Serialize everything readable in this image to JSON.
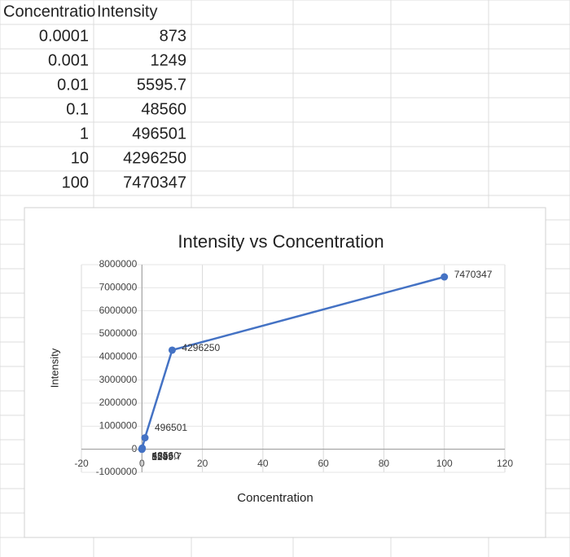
{
  "sheet": {
    "headers": [
      "Concentratio",
      "Intensity"
    ],
    "rows": [
      [
        0.0001,
        873
      ],
      [
        0.001,
        1249
      ],
      [
        0.01,
        5595.7
      ],
      [
        0.1,
        48560
      ],
      [
        1,
        496501
      ],
      [
        10,
        4296250
      ],
      [
        100,
        7470347
      ]
    ]
  },
  "chart_data": {
    "type": "scatter",
    "title": "Intensity vs Concentration",
    "x_label": "Concentration",
    "y_label": "Intensity",
    "x": [
      0.0001,
      0.001,
      0.01,
      0.1,
      1,
      10,
      100
    ],
    "values": [
      873,
      1249,
      5595.7,
      48560,
      496501,
      4296250,
      7470347
    ],
    "color": "#4472c4",
    "xlim": [
      -20,
      120
    ],
    "xticks": [
      -20,
      0,
      20,
      40,
      60,
      80,
      100,
      120
    ],
    "ylim": [
      -1000000,
      8000000
    ],
    "yticks": [
      -1000000,
      0,
      1000000,
      2000000,
      3000000,
      4000000,
      5000000,
      6000000,
      7000000,
      8000000
    ],
    "grid": true
  }
}
